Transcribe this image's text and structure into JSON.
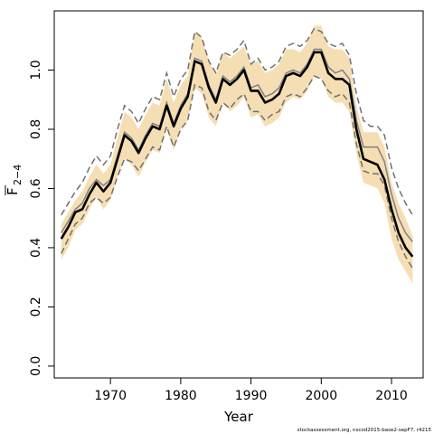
{
  "chart_data": {
    "type": "line",
    "xlabel": "Year",
    "ylabel_main": "F",
    "ylabel_sub": "2−4",
    "xlim": [
      1962,
      2014.5
    ],
    "ylim": [
      -0.04,
      1.2
    ],
    "x_ticks": [
      1970,
      1980,
      1990,
      2000,
      2010
    ],
    "x_tick_labels": [
      "1970",
      "1980",
      "1990",
      "2000",
      "2010"
    ],
    "y_ticks": [
      0.0,
      0.2,
      0.4,
      0.6,
      0.8,
      1.0
    ],
    "y_tick_labels": [
      "0.0",
      "0.2",
      "0.4",
      "0.6",
      "0.8",
      "1.0"
    ],
    "grid": false,
    "footer": "stockassessment.org, nscod2015-base2-sepF7, r4215",
    "colors": {
      "band": "#f5deb3",
      "estimate": "#000000",
      "alt_estimate": "#808080",
      "ci": "#707070"
    },
    "x": [
      1963,
      1964,
      1965,
      1966,
      1967,
      1968,
      1969,
      1970,
      1971,
      1972,
      1973,
      1974,
      1975,
      1976,
      1977,
      1978,
      1979,
      1980,
      1981,
      1982,
      1983,
      1984,
      1985,
      1986,
      1987,
      1988,
      1989,
      1990,
      1991,
      1992,
      1993,
      1994,
      1995,
      1996,
      1997,
      1998,
      1999,
      2000,
      2001,
      2002,
      2003,
      2004,
      2005,
      2006,
      2007,
      2008,
      2009,
      2010,
      2011,
      2012,
      2013
    ],
    "series": [
      {
        "role": "band",
        "upper": [
          0.48,
          0.52,
          0.56,
          0.59,
          0.64,
          0.68,
          0.65,
          0.68,
          0.77,
          0.86,
          0.84,
          0.8,
          0.85,
          0.89,
          0.88,
          0.97,
          0.89,
          0.95,
          0.98,
          1.13,
          1.11,
          1.03,
          0.98,
          1.06,
          1.04,
          1.06,
          1.08,
          1.02,
          1.03,
          0.99,
          1.0,
          1.02,
          1.07,
          1.07,
          1.06,
          1.09,
          1.15,
          1.15,
          1.08,
          1.07,
          1.07,
          1.04,
          0.88,
          0.79,
          0.79,
          0.79,
          0.74,
          0.62,
          0.55,
          0.5,
          0.44
        ],
        "lower": [
          0.36,
          0.4,
          0.46,
          0.48,
          0.53,
          0.57,
          0.53,
          0.56,
          0.64,
          0.7,
          0.68,
          0.64,
          0.69,
          0.73,
          0.72,
          0.8,
          0.73,
          0.8,
          0.83,
          0.94,
          0.92,
          0.84,
          0.81,
          0.89,
          0.86,
          0.88,
          0.91,
          0.84,
          0.85,
          0.81,
          0.82,
          0.84,
          0.89,
          0.91,
          0.9,
          0.93,
          0.98,
          0.97,
          0.91,
          0.89,
          0.89,
          0.86,
          0.72,
          0.62,
          0.61,
          0.6,
          0.55,
          0.43,
          0.36,
          0.32,
          0.28
        ]
      },
      {
        "role": "estimate",
        "values": [
          0.43,
          0.47,
          0.52,
          0.53,
          0.58,
          0.62,
          0.59,
          0.62,
          0.7,
          0.78,
          0.76,
          0.72,
          0.77,
          0.81,
          0.8,
          0.88,
          0.81,
          0.87,
          0.91,
          1.03,
          1.02,
          0.94,
          0.89,
          0.97,
          0.95,
          0.97,
          1.0,
          0.93,
          0.93,
          0.89,
          0.9,
          0.92,
          0.98,
          0.99,
          0.98,
          1.01,
          1.06,
          1.06,
          0.99,
          0.97,
          0.97,
          0.95,
          0.8,
          0.7,
          0.69,
          0.68,
          0.63,
          0.53,
          0.45,
          0.4,
          0.37
        ]
      },
      {
        "role": "alt_estimate",
        "values": [
          0.45,
          0.49,
          0.53,
          0.55,
          0.6,
          0.63,
          0.61,
          0.63,
          0.71,
          0.79,
          0.77,
          0.73,
          0.78,
          0.82,
          0.81,
          0.89,
          0.82,
          0.88,
          0.92,
          1.04,
          1.03,
          0.95,
          0.9,
          0.98,
          0.96,
          0.98,
          1.01,
          0.94,
          0.95,
          0.91,
          0.92,
          0.94,
          0.99,
          1.0,
          0.99,
          1.02,
          1.07,
          1.07,
          1.01,
          0.99,
          1.0,
          0.97,
          0.83,
          0.74,
          0.74,
          0.74,
          0.69,
          0.58,
          0.5,
          0.45,
          0.42
        ]
      },
      {
        "role": "ci_upper",
        "values": [
          0.51,
          0.55,
          0.59,
          0.62,
          0.67,
          0.71,
          0.68,
          0.71,
          0.8,
          0.88,
          0.86,
          0.82,
          0.87,
          0.91,
          0.9,
          0.99,
          0.91,
          0.97,
          1.0,
          1.13,
          1.11,
          1.03,
          0.99,
          1.06,
          1.05,
          1.07,
          1.1,
          1.02,
          1.04,
          1.0,
          1.01,
          1.03,
          1.08,
          1.09,
          1.08,
          1.1,
          1.14,
          1.13,
          1.09,
          1.08,
          1.09,
          1.05,
          0.92,
          0.83,
          0.81,
          0.81,
          0.78,
          0.67,
          0.6,
          0.55,
          0.51
        ]
      },
      {
        "role": "ci_lower",
        "values": [
          0.38,
          0.43,
          0.48,
          0.5,
          0.55,
          0.57,
          0.55,
          0.57,
          0.64,
          0.7,
          0.69,
          0.66,
          0.7,
          0.74,
          0.73,
          0.81,
          0.74,
          0.8,
          0.83,
          0.95,
          0.94,
          0.86,
          0.83,
          0.89,
          0.87,
          0.9,
          0.92,
          0.86,
          0.86,
          0.83,
          0.85,
          0.86,
          0.91,
          0.92,
          0.91,
          0.94,
          0.98,
          0.97,
          0.93,
          0.91,
          0.92,
          0.89,
          0.75,
          0.66,
          0.65,
          0.65,
          0.61,
          0.5,
          0.42,
          0.37,
          0.33
        ]
      }
    ]
  }
}
